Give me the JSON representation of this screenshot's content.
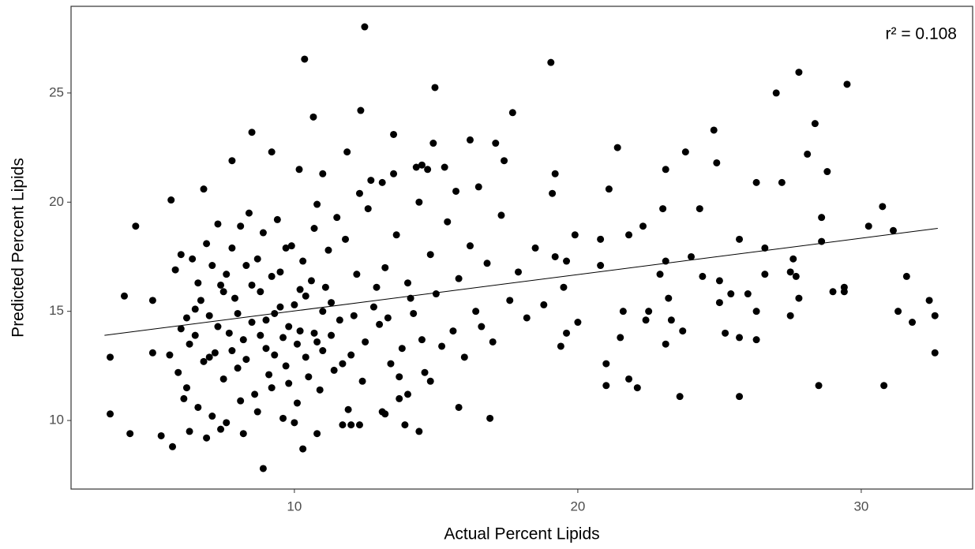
{
  "chart_data": {
    "type": "scatter",
    "x_label": "Actual Percent Lipids",
    "y_label": "Predicted Percent Lipids",
    "annotation": "r² = 0.108",
    "color": "#000000",
    "xlim": [
      2.12,
      33.93
    ],
    "ylim": [
      6.86,
      28.97
    ],
    "xticks": [
      10,
      20,
      30
    ],
    "yticks": [
      10,
      15,
      20,
      25
    ],
    "grid": false,
    "fit": {
      "x": [
        3.3,
        32.7
      ],
      "values": [
        13.9,
        18.8
      ]
    },
    "x": [
      12.48,
      10.36,
      19.05,
      14.96,
      27.8,
      27.0,
      29.5,
      12.34,
      17.7,
      10.67,
      8.5,
      28.37,
      24.8,
      13.5,
      14.9,
      16.2,
      17.1,
      21.4,
      11.86,
      9.2,
      28.1,
      23.8,
      7.8,
      24.9,
      17.4,
      14.5,
      10.17,
      11.0,
      19.2,
      23.1,
      28.8,
      26.3,
      27.2,
      6.8,
      21.1,
      5.65,
      19.1,
      30.75,
      4.4,
      30.26,
      31.13,
      31.6,
      31.3,
      31.8,
      32.4,
      32.6,
      32.6,
      30.8,
      28.5,
      29.4,
      29.4,
      3.5,
      3.5,
      4.0,
      4.2,
      5.3,
      5.7,
      8.9,
      10.3,
      10.8,
      6.2,
      5.0,
      5.0,
      25.7,
      23.6,
      22.1,
      21.0,
      21.8,
      16.9,
      15.8,
      14.4,
      13.9,
      13.2,
      12.0,
      11.7,
      14.8,
      14.0,
      27.5,
      27.8,
      27.5,
      26.6,
      26.0,
      25.4,
      25.0,
      25.2,
      25.7,
      26.3,
      26.3,
      25.0,
      24.4,
      24.0,
      23.1,
      22.9,
      23.2,
      23.3,
      23.1,
      23.7,
      22.4,
      22.5,
      21.6,
      21.5,
      21.0,
      20.0,
      19.4,
      19.5,
      19.6,
      19.9,
      20.8,
      20.8,
      21.8,
      22.3,
      23.0,
      24.3,
      25.7,
      26.6,
      27.7,
      27.6,
      28.6,
      28.6,
      29.0,
      6.0,
      6.3,
      6.5,
      6.8,
      7.0,
      7.2,
      7.4,
      7.5,
      7.7,
      7.9,
      8.0,
      8.2,
      8.3,
      8.5,
      8.6,
      8.8,
      9.0,
      9.1,
      9.3,
      9.5,
      9.6,
      9.8,
      10.0,
      10.2,
      10.4,
      10.6,
      10.8,
      11.0,
      11.2,
      11.4,
      5.8,
      6.1,
      6.4,
      6.6,
      6.9,
      7.1,
      7.3,
      7.6,
      7.8,
      8.1,
      8.4,
      8.7,
      8.9,
      9.2,
      9.4,
      9.7,
      9.9,
      10.1,
      10.3,
      10.5,
      10.7,
      10.9,
      11.1,
      11.3,
      11.6,
      11.8,
      12.0,
      12.2,
      12.4,
      12.6,
      12.8,
      13.0,
      13.2,
      13.4,
      13.6,
      13.8,
      14.0,
      14.2,
      14.4,
      14.6,
      14.8,
      15.0,
      15.2,
      15.4,
      15.6,
      15.8,
      16.0,
      16.2,
      16.4,
      16.6,
      16.8,
      17.0,
      17.3,
      17.6,
      17.9,
      18.2,
      18.5,
      18.8,
      19.2,
      19.6,
      5.6,
      5.9,
      6.2,
      6.5,
      6.7,
      7.0,
      7.3,
      7.5,
      7.8,
      8.0,
      8.3,
      8.5,
      8.8,
      9.0,
      9.3,
      9.5,
      9.8,
      10.1,
      10.4,
      10.7,
      11.0,
      11.3,
      11.7,
      12.1,
      12.5,
      12.9,
      13.3,
      13.7,
      14.1,
      14.5,
      6.0,
      6.6,
      7.1,
      7.6,
      8.1,
      8.7,
      9.2,
      9.7,
      10.2,
      10.8,
      11.5,
      12.3,
      12.7,
      13.1,
      13.5,
      14.3,
      14.7,
      15.3,
      15.7,
      16.5,
      11.9,
      12.3,
      13.1,
      13.7,
      6.3,
      6.9,
      7.4,
      8.2,
      9.6,
      10.0
    ],
    "values": [
      28.03,
      26.55,
      26.4,
      25.25,
      25.95,
      25.0,
      25.4,
      24.2,
      24.1,
      23.9,
      23.2,
      23.6,
      23.3,
      23.1,
      22.7,
      22.85,
      22.7,
      22.5,
      22.3,
      22.3,
      22.2,
      22.3,
      21.9,
      21.8,
      21.9,
      21.7,
      21.5,
      21.3,
      21.3,
      21.5,
      21.4,
      20.9,
      20.9,
      20.6,
      20.6,
      20.1,
      20.4,
      19.8,
      18.9,
      18.9,
      18.7,
      16.6,
      15.0,
      14.5,
      15.5,
      14.8,
      13.1,
      11.6,
      11.6,
      15.9,
      16.1,
      12.9,
      10.3,
      15.7,
      9.4,
      9.3,
      8.8,
      7.8,
      8.7,
      9.4,
      11.5,
      13.1,
      15.5,
      11.1,
      11.1,
      11.5,
      11.6,
      11.9,
      10.1,
      10.6,
      9.5,
      9.8,
      10.3,
      9.8,
      9.8,
      11.8,
      11.2,
      14.8,
      15.6,
      16.8,
      16.7,
      15.8,
      15.8,
      15.4,
      14.0,
      13.8,
      13.7,
      15.0,
      16.4,
      16.6,
      17.5,
      17.3,
      16.7,
      15.6,
      14.6,
      13.5,
      14.1,
      14.6,
      15.0,
      15.0,
      13.8,
      12.6,
      14.5,
      13.4,
      16.1,
      17.3,
      18.5,
      17.1,
      18.3,
      18.5,
      18.9,
      19.7,
      19.7,
      18.3,
      17.9,
      16.6,
      17.4,
      18.2,
      19.3,
      15.9,
      14.2,
      13.5,
      15.1,
      12.7,
      14.8,
      13.1,
      16.2,
      11.9,
      14.0,
      15.6,
      12.4,
      13.7,
      17.1,
      14.5,
      11.2,
      15.9,
      13.3,
      12.1,
      14.9,
      16.8,
      13.8,
      11.7,
      15.3,
      14.1,
      12.9,
      16.4,
      13.6,
      15.0,
      17.8,
      12.3,
      16.9,
      11.0,
      17.4,
      10.6,
      18.1,
      10.2,
      19.0,
      9.9,
      17.9,
      10.9,
      19.5,
      10.4,
      18.6,
      11.5,
      19.2,
      12.5,
      18.0,
      10.8,
      17.3,
      12.0,
      18.8,
      11.4,
      16.1,
      13.9,
      14.6,
      18.3,
      13.0,
      16.7,
      11.8,
      19.7,
      15.2,
      14.4,
      17.0,
      12.6,
      18.5,
      13.3,
      16.3,
      14.9,
      20.0,
      12.2,
      17.6,
      15.8,
      13.4,
      19.1,
      14.1,
      16.5,
      12.9,
      18.0,
      15.0,
      14.3,
      17.2,
      13.6,
      19.4,
      15.5,
      16.8,
      14.7,
      17.9,
      15.3,
      17.5,
      14.0,
      13.0,
      12.2,
      14.7,
      13.9,
      15.5,
      12.9,
      14.3,
      15.9,
      13.2,
      14.9,
      12.8,
      16.2,
      13.9,
      14.6,
      13.0,
      15.2,
      14.3,
      13.5,
      15.7,
      14.0,
      13.2,
      15.4,
      12.6,
      14.8,
      13.6,
      16.1,
      14.7,
      12.0,
      15.6,
      13.7,
      17.6,
      16.3,
      17.1,
      16.7,
      18.9,
      17.4,
      16.6,
      17.9,
      16.0,
      19.9,
      19.3,
      20.4,
      21.0,
      20.9,
      21.3,
      21.6,
      21.5,
      21.6,
      20.5,
      20.7,
      10.5,
      9.8,
      10.4,
      11.0,
      9.5,
      9.2,
      9.6,
      9.4,
      10.1,
      9.9
    ]
  }
}
